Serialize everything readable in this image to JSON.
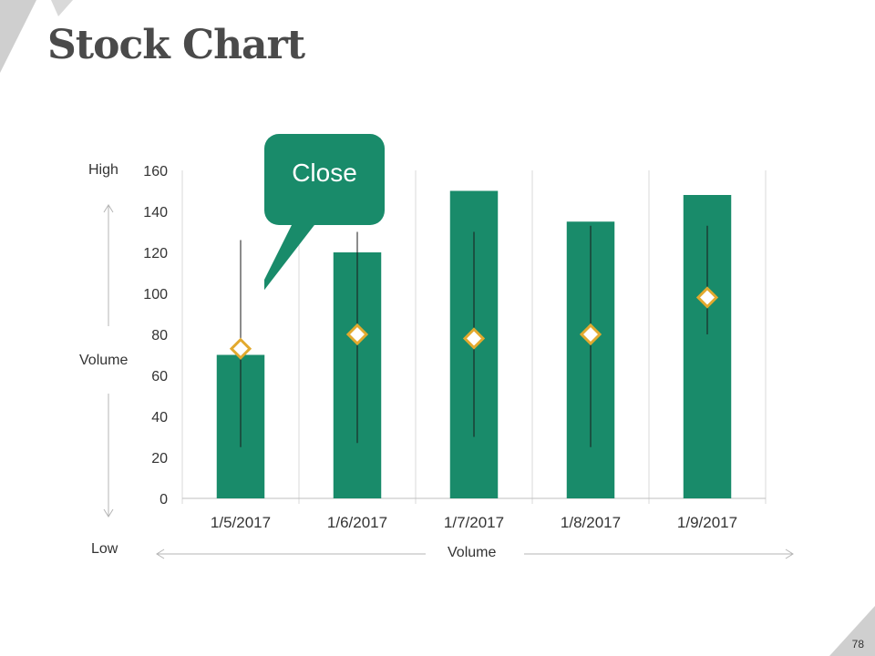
{
  "slide": {
    "title": "Stock Chart",
    "page_number": "78"
  },
  "colors": {
    "bar": "#198b6a",
    "marker_fill": "#ffffff",
    "marker_stroke": "#e2a92e",
    "callout": "#198b6a",
    "title": "#4a4a4a",
    "corner": "#c8c8c8"
  },
  "annotations": {
    "high": "High",
    "low": "Low",
    "volume_vertical": "Volume",
    "volume_horizontal": "Volume",
    "callout": "Close"
  },
  "chart_data": {
    "type": "bar",
    "categories": [
      "1/5/2017",
      "1/6/2017",
      "1/7/2017",
      "1/8/2017",
      "1/9/2017"
    ],
    "series": [
      {
        "values": [
          70,
          120,
          150,
          135,
          148
        ]
      }
    ],
    "high": [
      126,
      130,
      130,
      133,
      133
    ],
    "low": [
      25,
      27,
      30,
      25,
      80
    ],
    "close": [
      73,
      80,
      78,
      80,
      98
    ],
    "ylim": [
      0,
      160
    ],
    "yticks": [
      0,
      20,
      40,
      60,
      80,
      100,
      120,
      140,
      160
    ],
    "grid": "vertical",
    "legend": "none"
  }
}
